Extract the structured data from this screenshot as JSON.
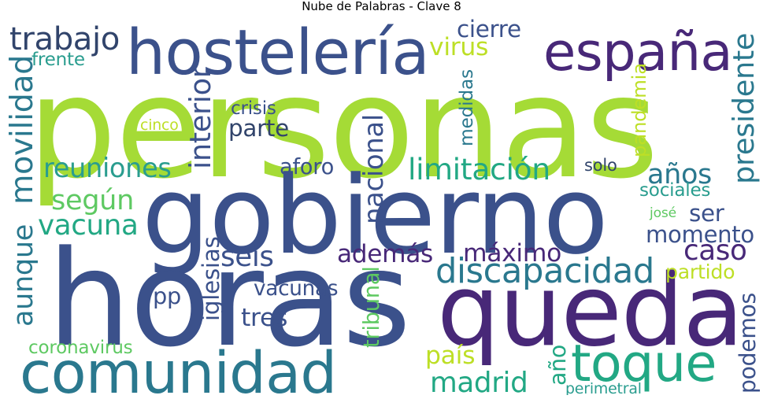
{
  "title": "Nube de Palabras - Clave 8",
  "words": [
    {
      "text": "personas",
      "color": "#a5db36"
    },
    {
      "text": "gobierno",
      "color": "#3b518b"
    },
    {
      "text": "horas",
      "color": "#3b518b"
    },
    {
      "text": "queda",
      "color": "#482878"
    },
    {
      "text": "comunidad",
      "color": "#2a788e"
    },
    {
      "text": "hostelería",
      "color": "#3b518b"
    },
    {
      "text": "españa",
      "color": "#482878"
    },
    {
      "text": "toque",
      "color": "#22a884"
    },
    {
      "text": "trabajo",
      "color": "#31446b"
    },
    {
      "text": "virus",
      "color": "#bddf26"
    },
    {
      "text": "cierre",
      "color": "#3b518b"
    },
    {
      "text": "movilidad",
      "color": "#2a788e"
    },
    {
      "text": "frente",
      "color": "#2a9d8f"
    },
    {
      "text": "presidente",
      "color": "#2a788e"
    },
    {
      "text": "crisis",
      "color": "#3b518b"
    },
    {
      "text": "cinco",
      "color": "#bddf26"
    },
    {
      "text": "parte",
      "color": "#31446b"
    },
    {
      "text": "interior",
      "color": "#3b518b"
    },
    {
      "text": "medidas",
      "color": "#2a788e"
    },
    {
      "text": "pandemia",
      "color": "#bddf26"
    },
    {
      "text": "reuniones",
      "color": "#2a9d8f"
    },
    {
      "text": "aforo",
      "color": "#3b518b"
    },
    {
      "text": "nacional",
      "color": "#3b518b"
    },
    {
      "text": "limitación",
      "color": "#22a884"
    },
    {
      "text": "años",
      "color": "#2a788e"
    },
    {
      "text": "solo",
      "color": "#31446b"
    },
    {
      "text": "sociales",
      "color": "#2a9d8f"
    },
    {
      "text": "según",
      "color": "#5ec962"
    },
    {
      "text": "vacuna",
      "color": "#22a884"
    },
    {
      "text": "ser",
      "color": "#3b518b"
    },
    {
      "text": "momento",
      "color": "#3b518b"
    },
    {
      "text": "aunque",
      "color": "#2a788e"
    },
    {
      "text": "seis",
      "color": "#3b518b"
    },
    {
      "text": "además",
      "color": "#482878"
    },
    {
      "text": "máximo",
      "color": "#482878"
    },
    {
      "text": "caso",
      "color": "#482878"
    },
    {
      "text": "discapacidad",
      "color": "#2a788e"
    },
    {
      "text": "partido",
      "color": "#bddf26"
    },
    {
      "text": "iglesias",
      "color": "#3b518b"
    },
    {
      "text": "pp",
      "color": "#3b518b"
    },
    {
      "text": "tribunal",
      "color": "#5ec962"
    },
    {
      "text": "vacunas",
      "color": "#3b518b"
    },
    {
      "text": "tres",
      "color": "#3b518b"
    },
    {
      "text": "podemos",
      "color": "#3b518b"
    },
    {
      "text": "coronavirus",
      "color": "#5ec962"
    },
    {
      "text": "país",
      "color": "#bddf26"
    },
    {
      "text": "año",
      "color": "#22a884"
    },
    {
      "text": "madrid",
      "color": "#22a884"
    },
    {
      "text": "perimetral",
      "color": "#2a9d8f"
    },
    {
      "text": "josé",
      "color": "#5ec962"
    }
  ]
}
